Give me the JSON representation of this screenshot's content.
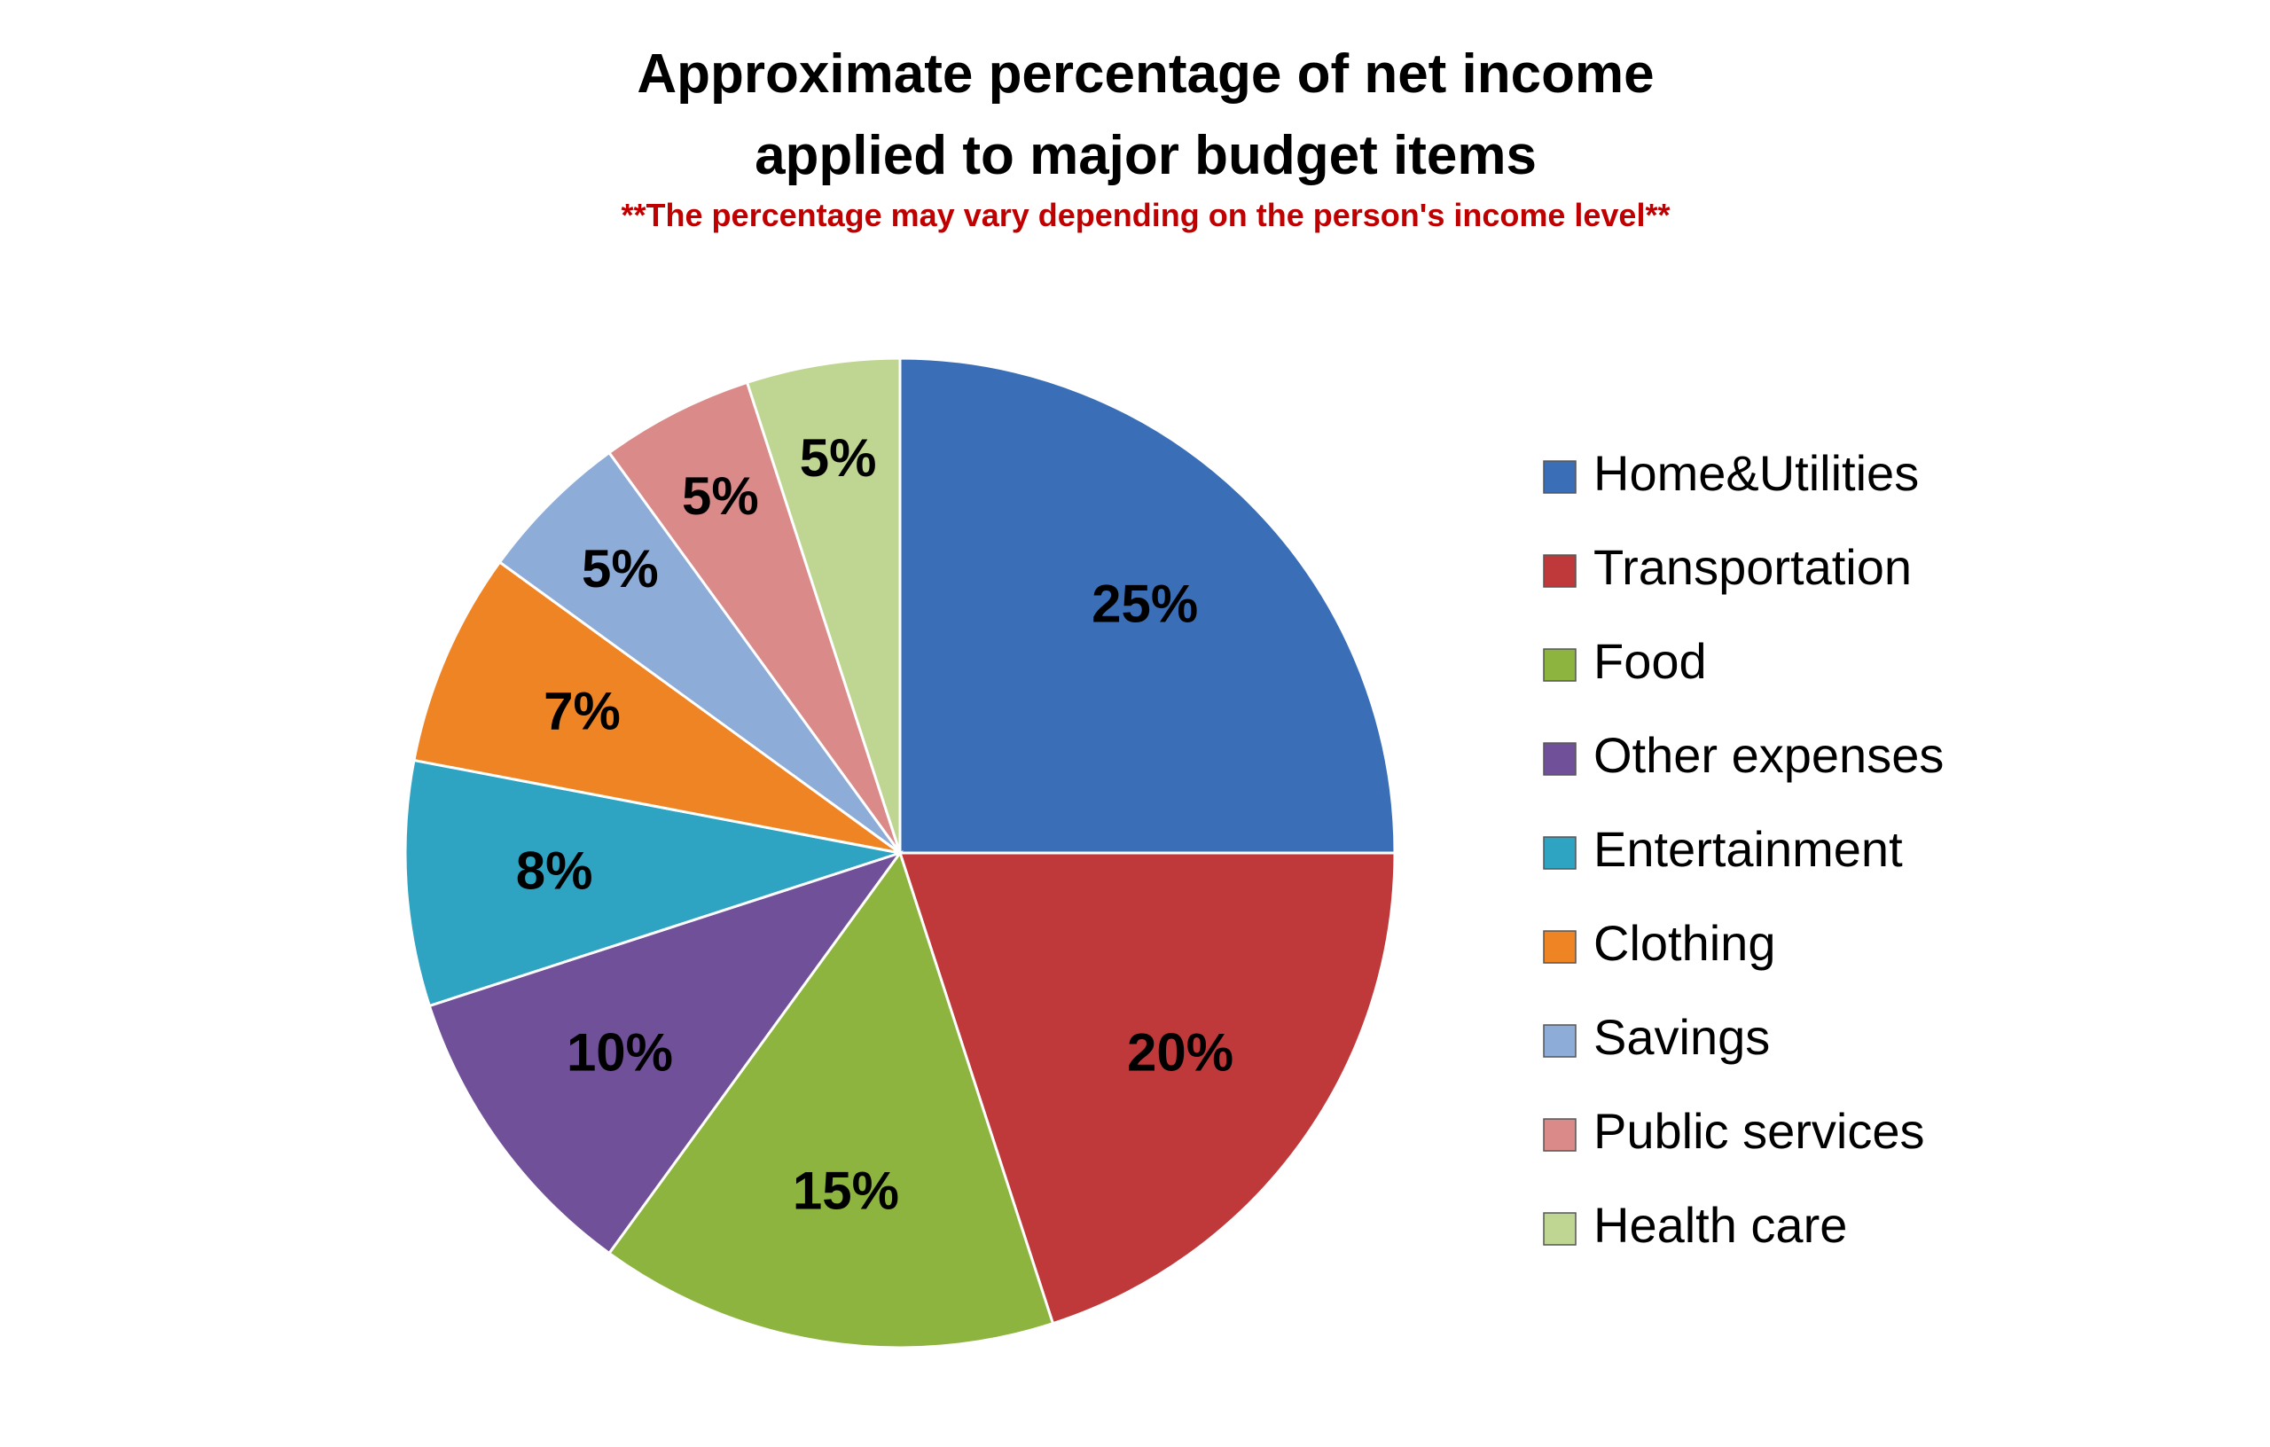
{
  "chart_data": {
    "type": "pie",
    "title": "Approximate percentage of net income applied to major budget items",
    "subtitle": "**The percentage may vary depending on the person's income level**",
    "categories": [
      "Home&Utilities",
      "Transportation",
      "Food",
      "Other expenses",
      "Entertainment",
      "Clothing",
      "Savings",
      "Public services",
      "Health care"
    ],
    "values": [
      25,
      20,
      15,
      10,
      8,
      7,
      5,
      5,
      5
    ],
    "value_labels": [
      "25%",
      "20%",
      "15%",
      "10%",
      "8%",
      "7%",
      "5%",
      "5%",
      "5%"
    ],
    "colors": [
      "#3a6fb8",
      "#c0393a",
      "#8cb43e",
      "#71509a",
      "#2fa4c2",
      "#ef8424",
      "#8eacd8",
      "#d98a89",
      "#bfd692"
    ],
    "legend": "right"
  }
}
